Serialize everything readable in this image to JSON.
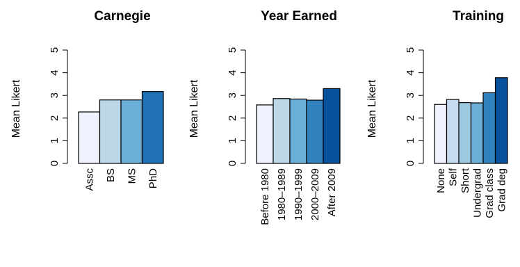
{
  "chart_data": [
    {
      "type": "bar",
      "title": "Carnegie",
      "ylabel": "Mean Likert",
      "xlabel": "",
      "ylim": [
        0,
        5
      ],
      "yticks": [
        0,
        1,
        2,
        3,
        4,
        5
      ],
      "categories": [
        "Assc",
        "BS",
        "MS",
        "PhD"
      ],
      "values": [
        2.27,
        2.8,
        2.8,
        3.17
      ],
      "colors": [
        "#eff3ff",
        "#bdd7e7",
        "#6baed6",
        "#2171b5"
      ]
    },
    {
      "type": "bar",
      "title": "Year Earned",
      "ylabel": "Mean Likert",
      "xlabel": "",
      "ylim": [
        0,
        5
      ],
      "yticks": [
        0,
        1,
        2,
        3,
        4,
        5
      ],
      "categories": [
        "Before 1980",
        "1980–1989",
        "1990–1999",
        "2000–2009",
        "After 2009"
      ],
      "values": [
        2.58,
        2.86,
        2.84,
        2.79,
        3.3
      ],
      "colors": [
        "#eff3ff",
        "#bdd7e7",
        "#6baed6",
        "#3182bd",
        "#08519c"
      ]
    },
    {
      "type": "bar",
      "title": "Training",
      "ylabel": "Mean Likert",
      "xlabel": "",
      "ylim": [
        0,
        5
      ],
      "yticks": [
        0,
        1,
        2,
        3,
        4,
        5
      ],
      "categories": [
        "None",
        "Self",
        "Short",
        "Undergrad",
        "Grad class",
        "Grad deg"
      ],
      "values": [
        2.6,
        2.82,
        2.68,
        2.67,
        3.12,
        3.78
      ],
      "colors": [
        "#eff3ff",
        "#c6dbef",
        "#9ecae1",
        "#6baed6",
        "#3182bd",
        "#08519c"
      ]
    }
  ]
}
